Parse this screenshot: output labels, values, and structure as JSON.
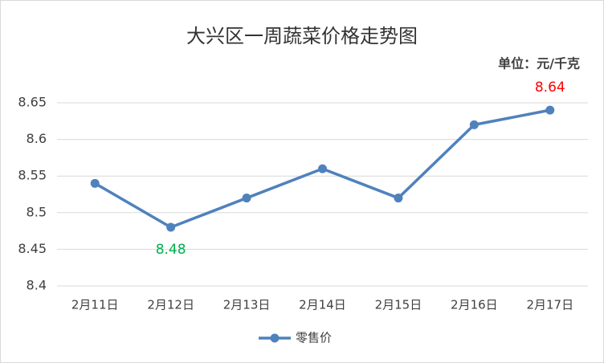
{
  "chart_data": {
    "type": "line",
    "title": "大兴区一周蔬菜价格走势图",
    "unit_note": "单位：元/千克",
    "categories": [
      "2月11日",
      "2月12日",
      "2月13日",
      "2月14日",
      "2月15日",
      "2月16日",
      "2月17日"
    ],
    "series": [
      {
        "name": "零售价",
        "color": "#4f81bd",
        "values": [
          8.54,
          8.48,
          8.52,
          8.56,
          8.52,
          8.62,
          8.64
        ],
        "label_colors": [
          null,
          "#00b050",
          null,
          null,
          null,
          null,
          "#ff0000"
        ]
      }
    ],
    "ylim": [
      8.4,
      8.65
    ],
    "yticks": [
      8.4,
      8.45,
      8.5,
      8.55,
      8.6,
      8.65
    ],
    "grid": true,
    "legend": "bottom"
  }
}
